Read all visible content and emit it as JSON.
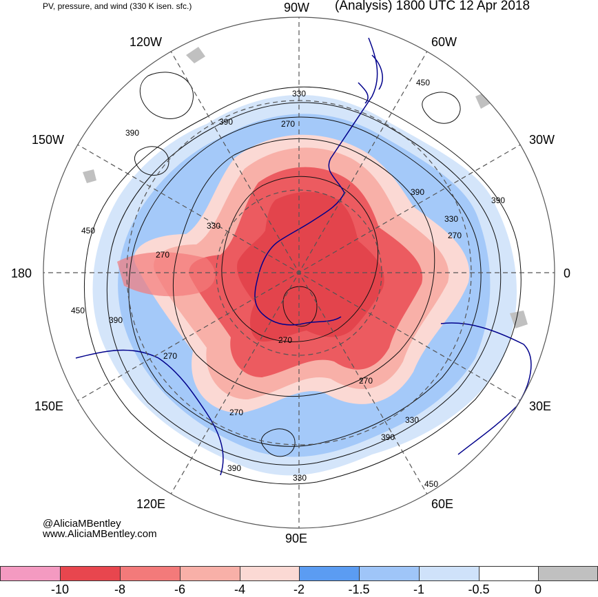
{
  "header": {
    "subtitle": "PV, pressure, and wind (330 K isen. sfc.)",
    "title": "(Analysis) 1800 UTC 12 Apr 2018"
  },
  "credits": {
    "handle": "@AliciaMBentley",
    "website": "www.AliciaMBentley.com"
  },
  "longitudes": [
    "90W",
    "60W",
    "30W",
    "0",
    "30E",
    "60E",
    "90E",
    "120E",
    "150E",
    "180",
    "150W",
    "120W"
  ],
  "contour_labels": [
    "330",
    "390",
    "270",
    "450",
    "390",
    "330",
    "270",
    "390",
    "450",
    "330",
    "390",
    "270",
    "270",
    "390",
    "450",
    "270",
    "270",
    "330",
    "270",
    "390",
    "450",
    "390",
    "330"
  ],
  "colorbar": {
    "ticks": [
      "-10",
      "-8",
      "-6",
      "-4",
      "-2",
      "-1.5",
      "-1",
      "-0.5",
      "0"
    ],
    "colors": [
      "#f49ac1",
      "#e8464e",
      "#f37a7a",
      "#f8b0a8",
      "#fbd9d4",
      "#5b9cf2",
      "#9fc5f8",
      "#cfe2fa",
      "#ffffff",
      "#c0c0c0"
    ]
  }
}
